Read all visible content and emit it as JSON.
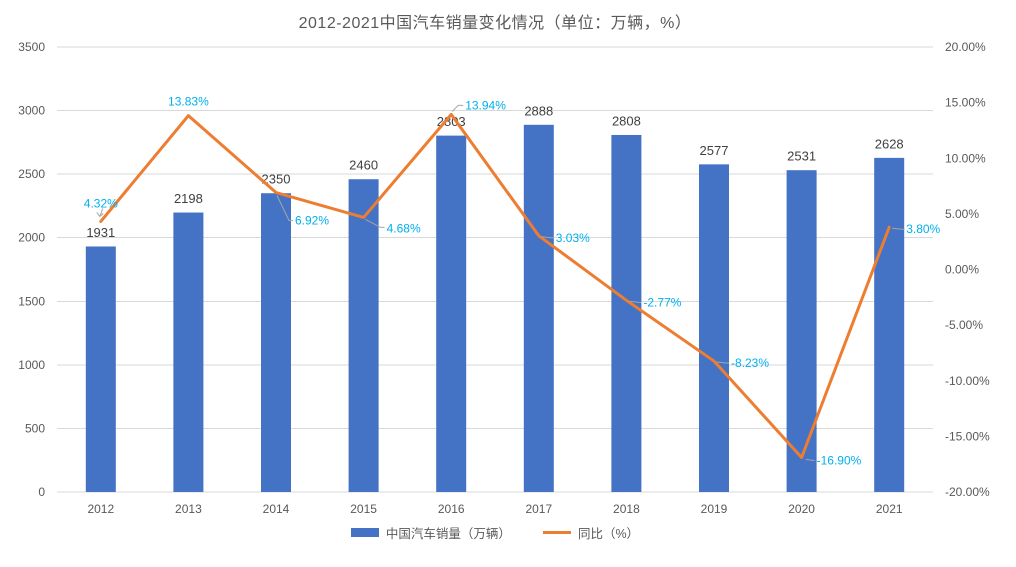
{
  "title": "2012-2021中国汽车销量变化情况（单位：万辆，%）",
  "chart_data": {
    "type": "combo-bar-line",
    "title": "2012-2021中国汽车销量变化情况（单位：万辆，%）",
    "categories": [
      "2012",
      "2013",
      "2014",
      "2015",
      "2016",
      "2017",
      "2018",
      "2019",
      "2020",
      "2021"
    ],
    "series": [
      {
        "name": "中国汽车销量（万辆）",
        "type": "bar",
        "axis": "left",
        "color": "#4472C4",
        "values": [
          1931,
          2198,
          2350,
          2460,
          2803,
          2888,
          2808,
          2577,
          2531,
          2628
        ],
        "data_labels": [
          "1931",
          "2198",
          "2350",
          "2460",
          "2803",
          "2888",
          "2808",
          "2577",
          "2531",
          "2628"
        ],
        "label_color": "#404040"
      },
      {
        "name": "同比（%）",
        "type": "line",
        "axis": "right",
        "color": "#ED7D31",
        "values": [
          4.32,
          13.83,
          6.92,
          4.68,
          13.94,
          3.03,
          -2.77,
          -8.23,
          -16.9,
          3.8
        ],
        "data_labels": [
          "4.32%",
          "13.83%",
          "6.92%",
          "4.68%",
          "13.94%",
          "3.03%",
          "-2.77%",
          "-8.23%",
          "-16.90%",
          "3.80%"
        ],
        "label_color": "#00B0F0"
      }
    ],
    "left_axis": {
      "min": 0,
      "max": 3500,
      "step": 500,
      "ticks": [
        "3500",
        "3000",
        "2500",
        "2000",
        "1500",
        "1000",
        "500",
        "0"
      ]
    },
    "right_axis": {
      "min": -20,
      "max": 20,
      "step": 5,
      "ticks": [
        "20.00%",
        "15.00%",
        "10.00%",
        "5.00%",
        "0.00%",
        "-5.00%",
        "-10.00%",
        "-15.00%",
        "-20.00%"
      ]
    },
    "grid": true,
    "legend_position": "bottom",
    "background": "#FFFFFF",
    "colors": {
      "gridline": "#D9D9D9",
      "axis_text": "#595959",
      "title_text": "#595959",
      "bar_label": "#404040",
      "leader": "#A6A6A6"
    }
  },
  "legend": {
    "items": [
      {
        "label": "中国汽车销量（万辆）"
      },
      {
        "label": "同比（%）"
      }
    ]
  }
}
